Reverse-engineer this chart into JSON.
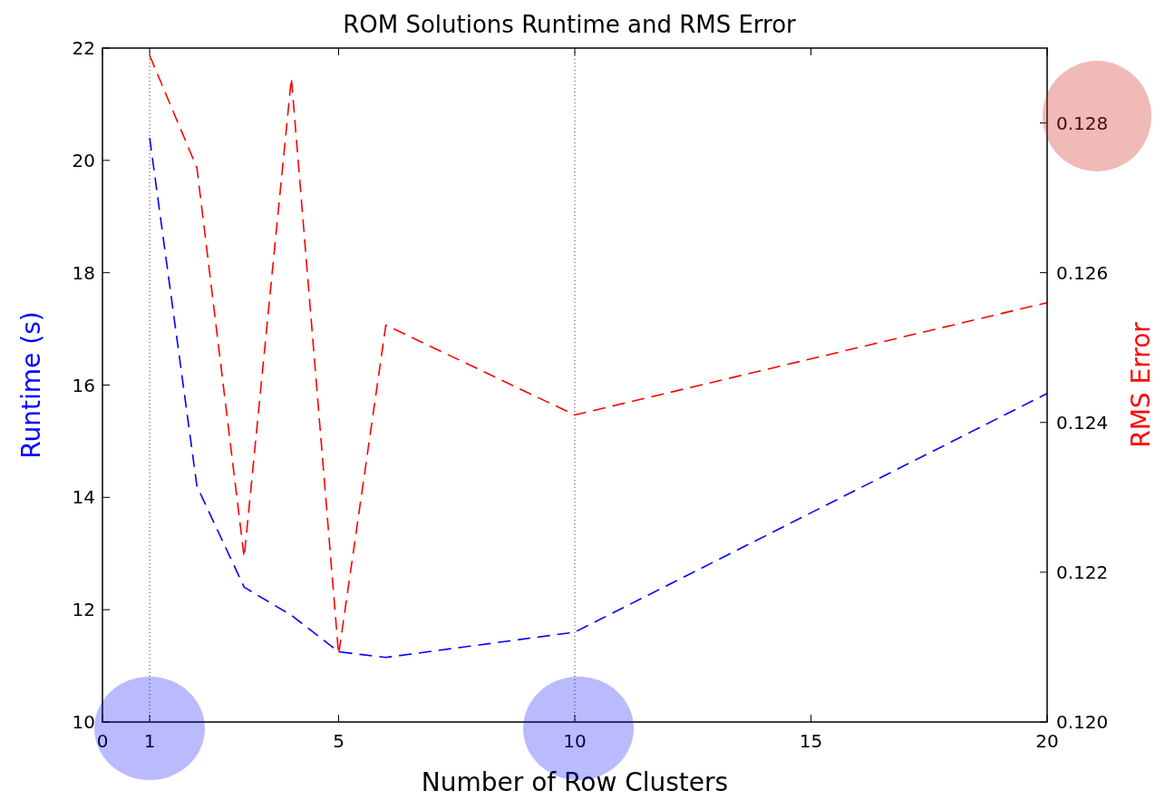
{
  "chart_data": {
    "type": "line",
    "title": "ROM Solutions Runtime and RMS Error",
    "xlabel": "Number of Row Clusters",
    "ylabel": "Runtime (s)",
    "y2label": "RMS Error",
    "x": [
      1,
      2,
      3,
      4,
      5,
      6,
      10,
      20
    ],
    "series": [
      {
        "color": "#0000ff",
        "values": [
          20.4,
          14.2,
          12.4,
          11.9,
          11.25,
          11.15,
          11.6,
          15.85
        ]
      },
      {
        "color": "#ff0000",
        "axis": "y2",
        "values": [
          0.1289,
          0.1274,
          0.1222,
          0.1286,
          0.1209,
          0.1253,
          0.1241,
          0.1256
        ]
      }
    ],
    "line_style": "dashed",
    "marker": "none",
    "grid": false,
    "xlim": [
      0,
      20
    ],
    "xticks": [
      0,
      1,
      5,
      10,
      15,
      20
    ],
    "ylim": [
      10,
      22
    ],
    "yticks": [
      10,
      12,
      14,
      16,
      18,
      20,
      22
    ],
    "y2lim": [
      0.12,
      0.129
    ],
    "y2ticks": [
      {
        "value": 0.12,
        "label": "0.120"
      },
      {
        "value": 0.122,
        "label": "0.122"
      },
      {
        "value": 0.124,
        "label": "0.124"
      },
      {
        "value": 0.126,
        "label": "0.126"
      },
      {
        "value": 0.128,
        "label": "0.128"
      }
    ],
    "ref_lines": [
      {
        "axis": "x",
        "value": 1,
        "color": "#000000",
        "line_style": "dotted"
      },
      {
        "axis": "x",
        "value": 10,
        "color": "#000000",
        "line_style": "dotted"
      }
    ]
  }
}
